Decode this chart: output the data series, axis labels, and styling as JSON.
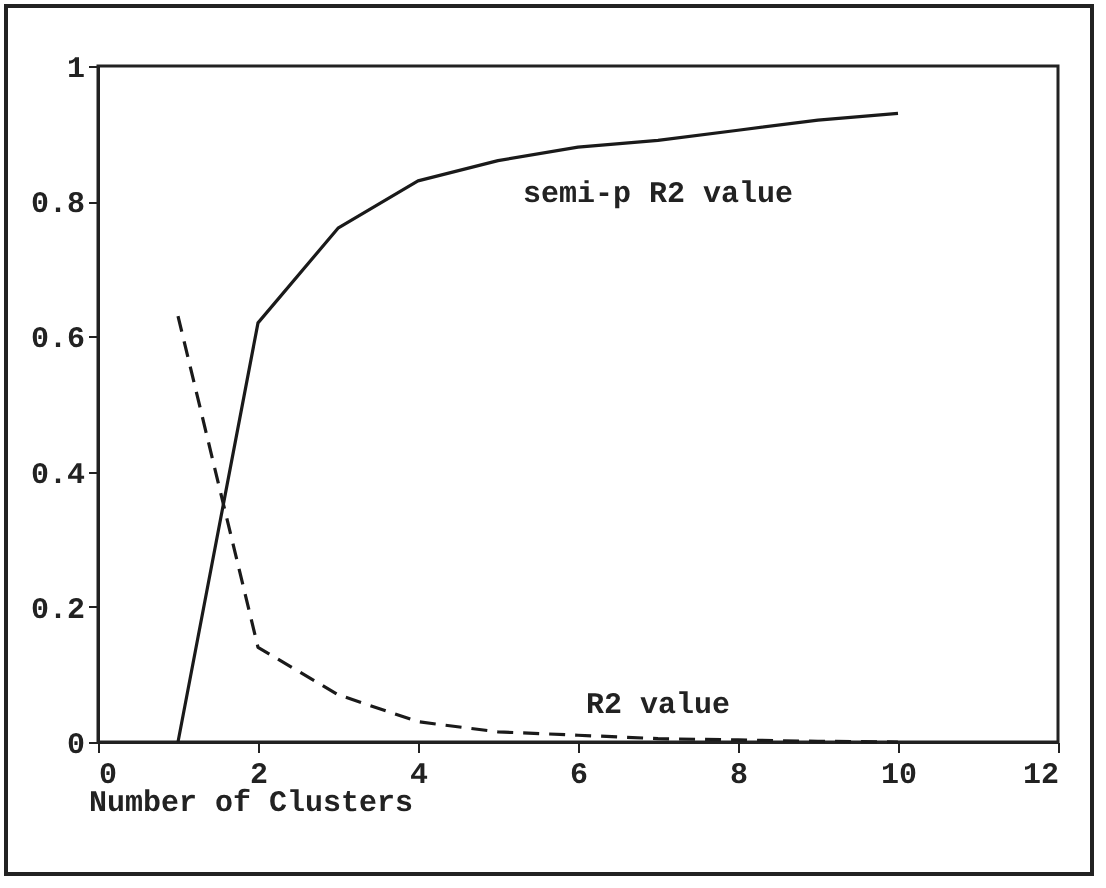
{
  "chart_data": {
    "type": "line",
    "xlabel": "Number of Clusters",
    "x": [
      1,
      2,
      3,
      4,
      5,
      6,
      7,
      8,
      9,
      10
    ],
    "series": [
      {
        "name": "semi-p R2 value",
        "color": "#1a1a1a",
        "line_style": "solid",
        "values": [
          0,
          0.62,
          0.76,
          0.83,
          0.86,
          0.88,
          0.89,
          0.905,
          0.92,
          0.93
        ]
      },
      {
        "name": "R2 value",
        "color": "#1a1a1a",
        "line_style": "dashed",
        "values": [
          0.63,
          0.14,
          0.07,
          0.03,
          0.015,
          0.01,
          0.005,
          0.003,
          0.001,
          0
        ]
      }
    ],
    "xlim": [
      0,
      12
    ],
    "xticks": [
      0,
      2,
      4,
      6,
      8,
      10,
      12
    ],
    "ylim": [
      0,
      1
    ],
    "yticks": [
      0,
      0.2,
      0.4,
      0.6,
      0.8,
      1
    ],
    "grid": false,
    "legend": false,
    "marker": "none"
  }
}
